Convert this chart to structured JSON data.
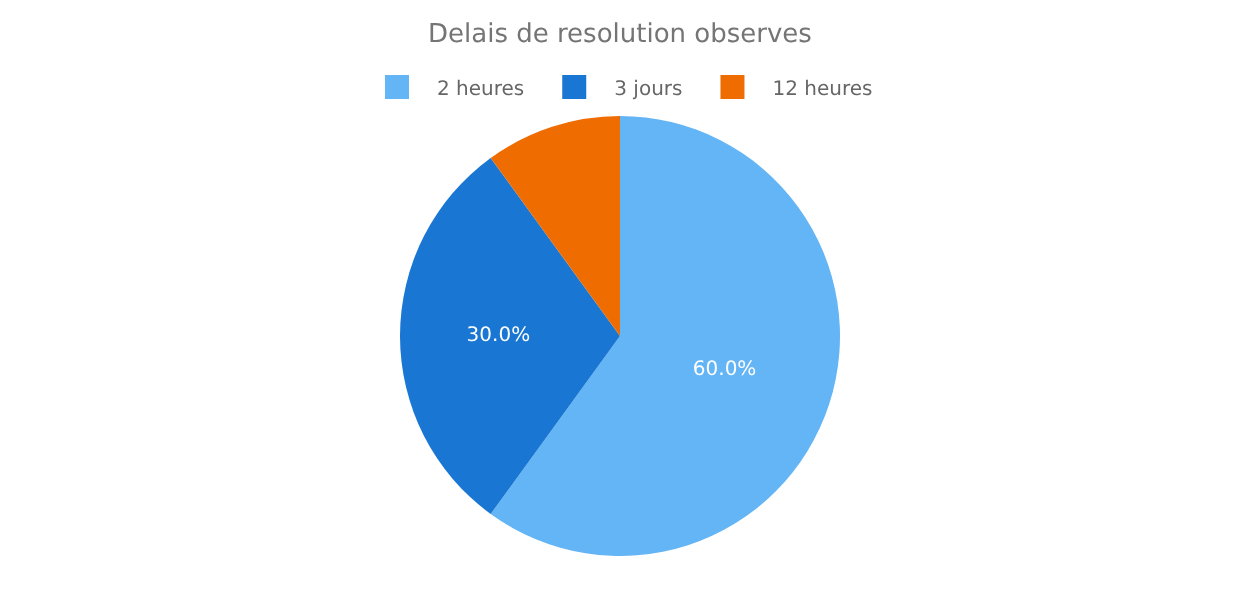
{
  "chart_data": {
    "type": "pie",
    "title": "Delais de resolution observes",
    "categories": [
      "2 heures",
      "3 jours",
      "12 heures"
    ],
    "values": [
      60,
      30,
      10
    ],
    "value_labels": [
      "60.0%",
      "30.0%",
      null
    ],
    "colors": [
      "#64b5f6",
      "#1976d2",
      "#ef6c00"
    ],
    "legend": "top"
  }
}
